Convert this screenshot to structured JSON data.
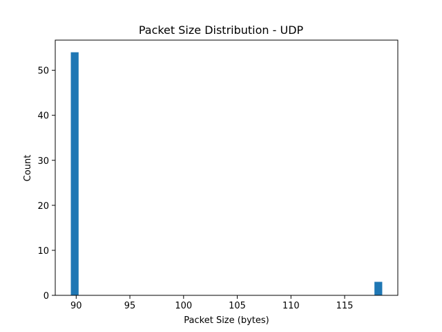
{
  "chart_data": {
    "type": "bar",
    "title": "Packet Size Distribution - UDP",
    "xlabel": "Packet Size (bytes)",
    "ylabel": "Count",
    "xlim": [
      88.05,
      119.95
    ],
    "ylim": [
      0,
      56.7
    ],
    "xticks": [
      90,
      95,
      100,
      105,
      110,
      115
    ],
    "yticks": [
      0,
      10,
      20,
      30,
      40,
      50
    ],
    "bin_width": 0.725,
    "bars": [
      {
        "x_start": 89.5,
        "x_end": 90.225,
        "value": 54
      },
      {
        "x_start": 117.775,
        "x_end": 118.5,
        "value": 3
      }
    ],
    "bar_color": "#1f77b4",
    "grid": false
  }
}
